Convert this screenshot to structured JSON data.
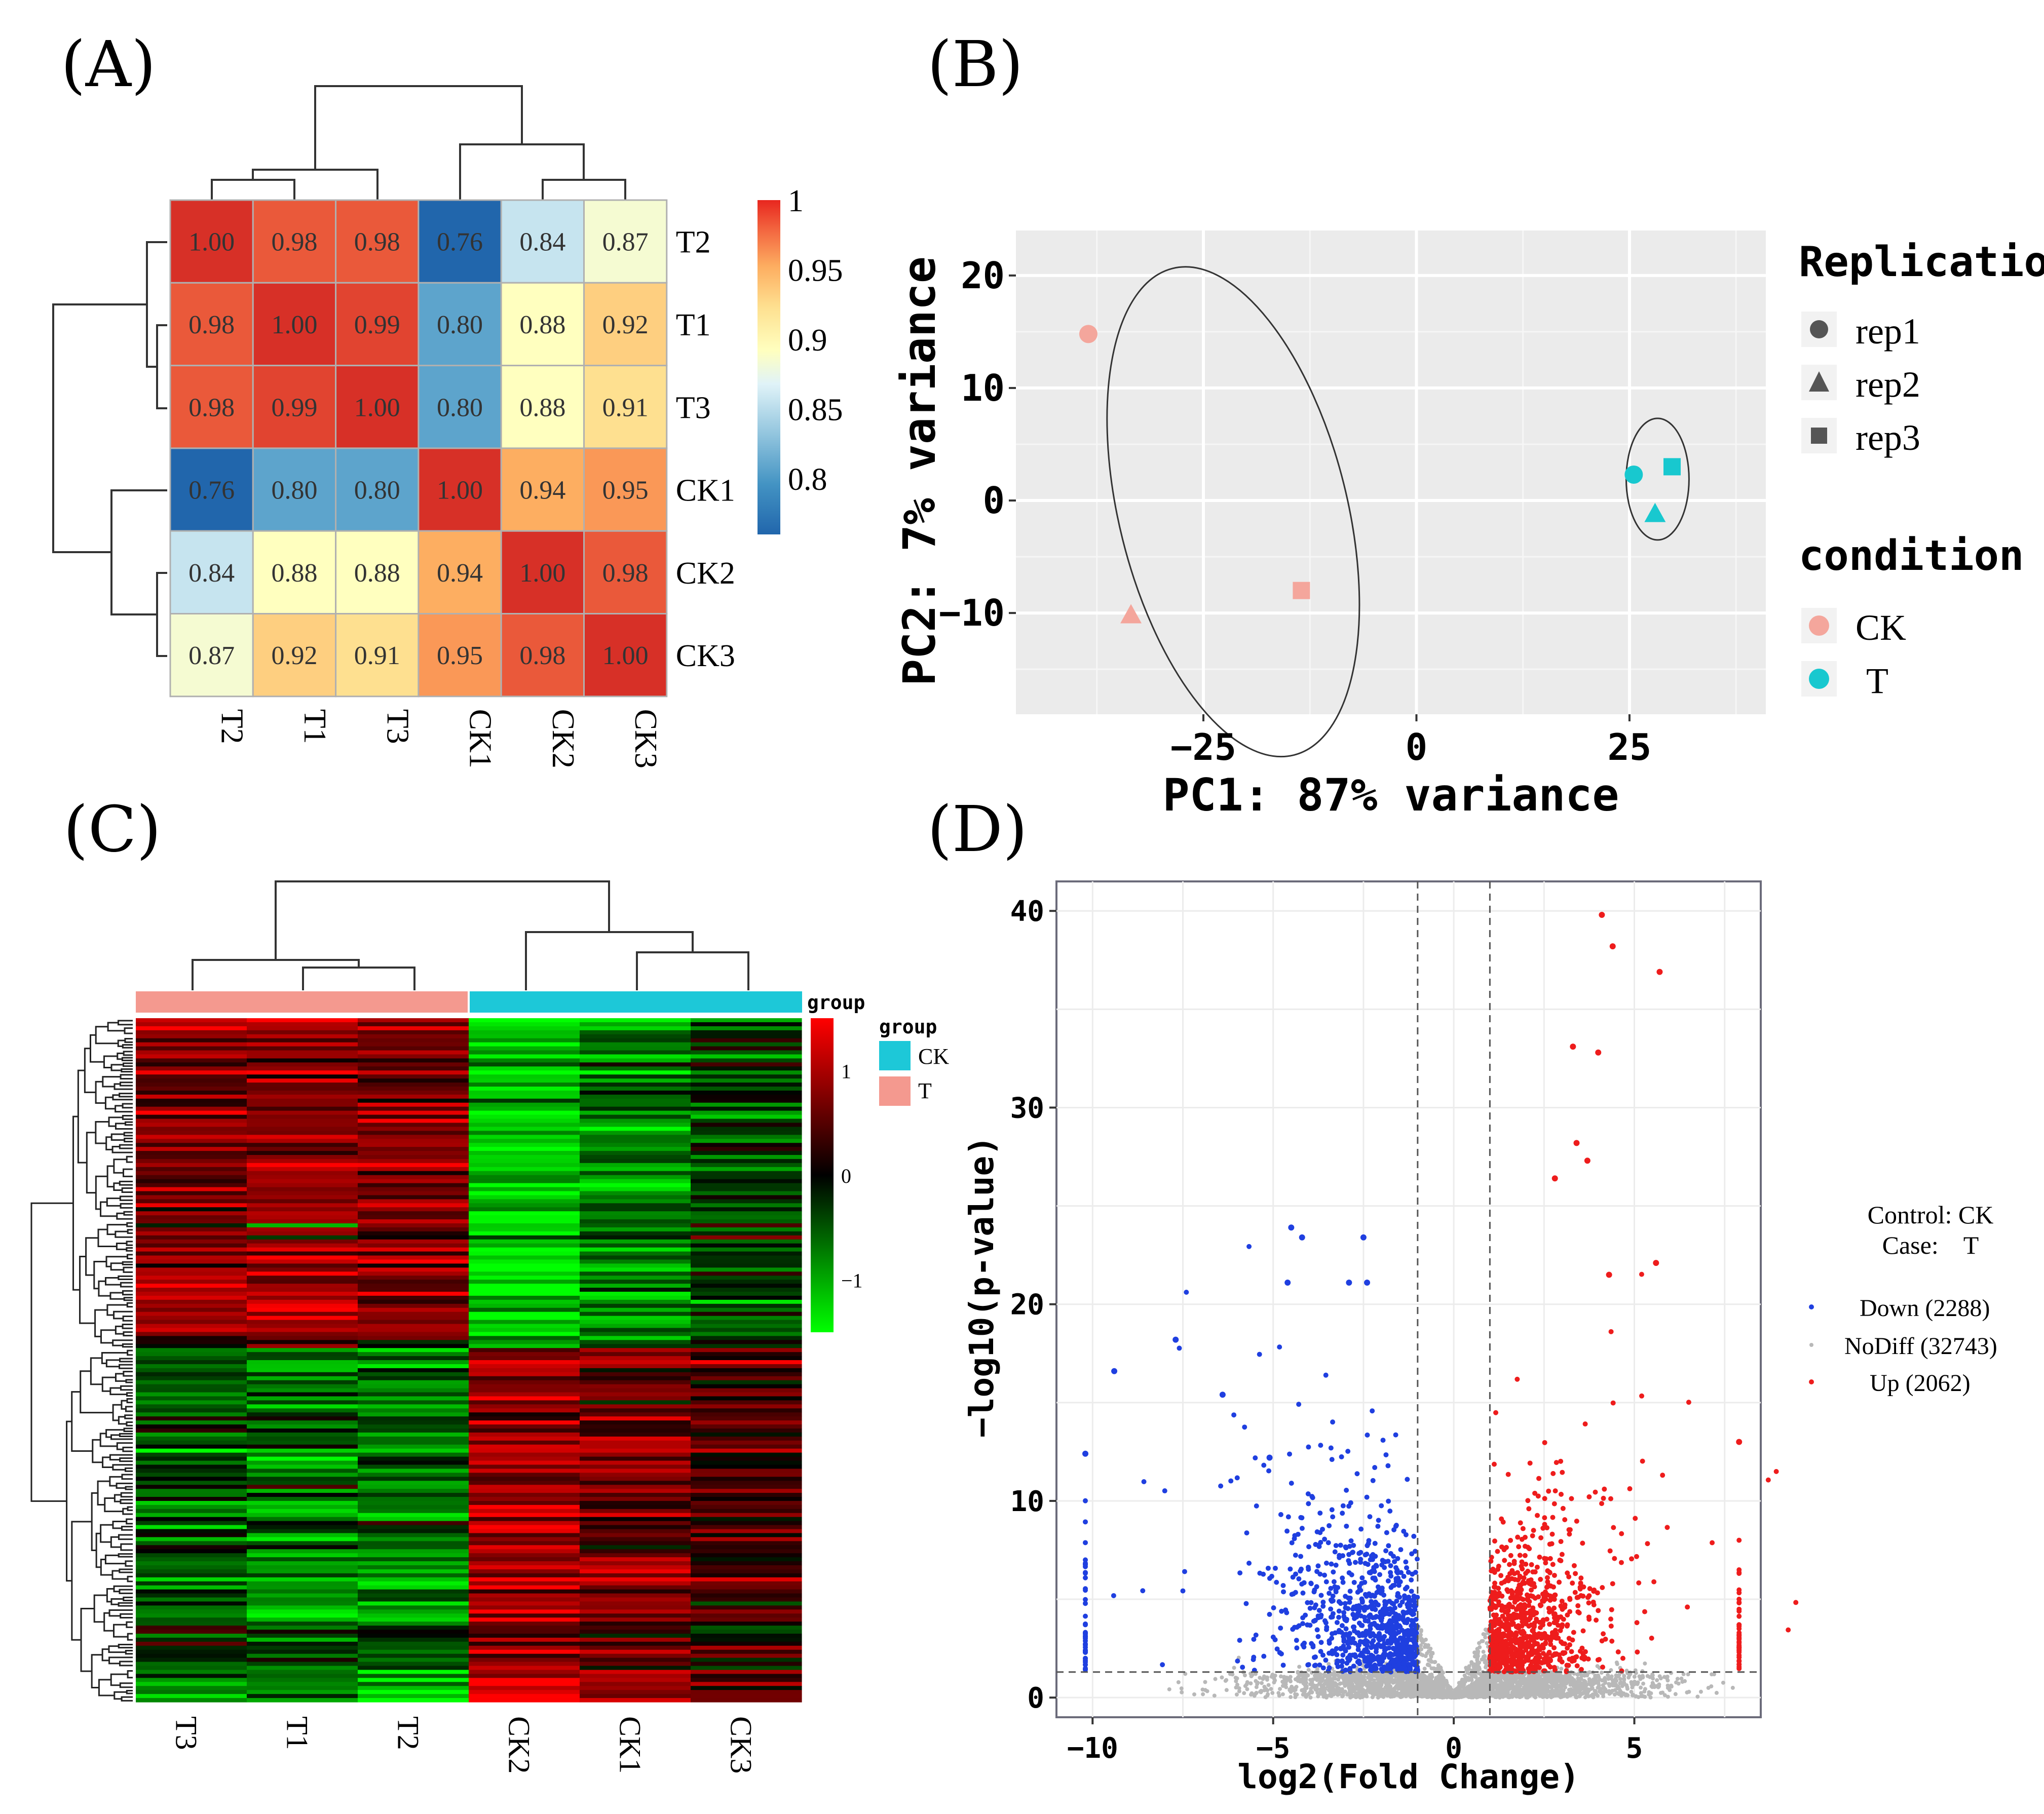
{
  "figure": {
    "panel_labels": [
      "(A)",
      "(B)",
      "(C)",
      "(D)"
    ]
  },
  "chart_data": [
    {
      "panel": "(A)",
      "type": "heatmap",
      "title": "",
      "row_labels": [
        "T2",
        "T1",
        "T3",
        "CK1",
        "CK2",
        "CK3"
      ],
      "col_labels": [
        "T2",
        "T1",
        "T3",
        "CK1",
        "CK2",
        "CK3"
      ],
      "values": [
        [
          1.0,
          0.98,
          0.98,
          0.76,
          0.84,
          0.87
        ],
        [
          0.98,
          1.0,
          0.99,
          0.8,
          0.88,
          0.92
        ],
        [
          0.98,
          0.99,
          1.0,
          0.8,
          0.88,
          0.91
        ],
        [
          0.76,
          0.8,
          0.8,
          1.0,
          0.94,
          0.95
        ],
        [
          0.84,
          0.88,
          0.88,
          0.94,
          1.0,
          0.98
        ],
        [
          0.87,
          0.92,
          0.91,
          0.95,
          0.98,
          1.0
        ]
      ],
      "value_labels": [
        [
          "1.00",
          "0.98",
          "0.98",
          "0.76",
          "0.84",
          "0.87"
        ],
        [
          "0.98",
          "1.00",
          "0.99",
          "0.80",
          "0.88",
          "0.92"
        ],
        [
          "0.98",
          "0.99",
          "1.00",
          "0.80",
          "0.88",
          "0.91"
        ],
        [
          "0.76",
          "0.80",
          "0.80",
          "1.00",
          "0.94",
          "0.95"
        ],
        [
          "0.84",
          "0.88",
          "0.88",
          "0.94",
          "1.00",
          "0.98"
        ],
        [
          "0.87",
          "0.92",
          "0.91",
          "0.95",
          "0.98",
          "1.00"
        ]
      ],
      "colorbar": {
        "min": 0.76,
        "max": 1.0,
        "ticks": [
          1,
          0.95,
          0.9,
          0.85,
          0.8
        ],
        "tick_labels": [
          "1",
          "0.95",
          "0.9",
          "0.85",
          "0.8"
        ],
        "colors": [
          "#2166ac",
          "#4393c3",
          "#92c5de",
          "#e0f3f8",
          "#ffffbf",
          "#fee090",
          "#fdae61",
          "#f46d43",
          "#d73027"
        ]
      },
      "dendrogram": "complete linkage; clusters {T2,(T1,T3)} and {CK1,(CK2,CK3)}"
    },
    {
      "panel": "(B)",
      "type": "scatter",
      "title": "",
      "xlabel": "PC1: 87% variance",
      "ylabel": "PC2: 7% variance",
      "xlim": [
        -47,
        41
      ],
      "ylim": [
        -19,
        24
      ],
      "x_ticks": [
        -25,
        0,
        25
      ],
      "x_tick_labels": [
        "−25",
        "0",
        "25"
      ],
      "y_ticks": [
        -10,
        0,
        10,
        20
      ],
      "y_tick_labels": [
        "−10",
        "0",
        "10",
        "20"
      ],
      "points": [
        {
          "x": -38.5,
          "y": 14.8,
          "condition": "CK",
          "replication": "rep1"
        },
        {
          "x": -33.5,
          "y": -10.2,
          "condition": "CK",
          "replication": "rep2"
        },
        {
          "x": -13.5,
          "y": -8.0,
          "condition": "CK",
          "replication": "rep3"
        },
        {
          "x": 25.5,
          "y": 2.3,
          "condition": "T",
          "replication": "rep1"
        },
        {
          "x": 28.0,
          "y": -1.2,
          "condition": "T",
          "replication": "rep2"
        },
        {
          "x": 30.0,
          "y": 3.0,
          "condition": "T",
          "replication": "rep3"
        }
      ],
      "ellipses": [
        {
          "condition": "CK",
          "center_x": -21.5,
          "center_y": -1.0,
          "note": "confidence ellipse"
        },
        {
          "condition": "T",
          "center_x": 28.3,
          "center_y": 1.9,
          "note": "confidence ellipse"
        }
      ],
      "legend": {
        "replication_title": "Replication",
        "replication": [
          "rep1",
          "rep2",
          "rep3"
        ],
        "condition_title": "condition",
        "condition": [
          "CK",
          "T"
        ],
        "condition_colors": {
          "CK": "#f4a69c",
          "T": "#18c8cf"
        }
      }
    },
    {
      "panel": "(C)",
      "type": "heatmap",
      "title": "",
      "col_labels": [
        "T3",
        "T1",
        "T2",
        "CK2",
        "CK1",
        "CK3"
      ],
      "col_groups": [
        "T",
        "T",
        "T",
        "CK",
        "CK",
        "CK"
      ],
      "group_legend_title": "group",
      "group_annotation_title": "group",
      "group_labels": [
        "CK",
        "T"
      ],
      "group_colors": {
        "CK": "#1dc8d8",
        "T": "#f4998f"
      },
      "colorbar": {
        "ticks": [
          1,
          0,
          -1
        ],
        "tick_labels": [
          "1",
          "0",
          "−1"
        ],
        "low": "#00ff00",
        "mid": "#000000",
        "high": "#ff0000"
      },
      "blocks": [
        {
          "name": "upper gene cluster",
          "fraction_of_rows": 0.48,
          "column_means": [
            0.75,
            0.8,
            0.7,
            -1.1,
            -0.7,
            -0.4
          ]
        },
        {
          "name": "lower gene cluster",
          "fraction_of_rows": 0.52,
          "column_means": [
            -0.6,
            -0.7,
            -0.75,
            1.0,
            0.7,
            0.35
          ]
        }
      ]
    },
    {
      "panel": "(D)",
      "type": "scatter",
      "title": "",
      "xlabel": "log2(Fold Change)",
      "ylabel": "−log10(p-value)",
      "xlim": [
        -11,
        8.5
      ],
      "ylim": [
        -1,
        41.5
      ],
      "x_ticks": [
        -10,
        -5,
        0,
        5
      ],
      "x_tick_labels": [
        "−10",
        "−5",
        "0",
        "5"
      ],
      "y_ticks": [
        0,
        10,
        20,
        30,
        40
      ],
      "y_tick_labels": [
        "0",
        "10",
        "20",
        "30",
        "40"
      ],
      "fc_threshold_lines": [
        -1,
        1
      ],
      "pvalue_threshold_line": 1.3,
      "info_control": "Control: CK",
      "info_case": "Case:    T",
      "legend": [
        {
          "label": "Down (2288)",
          "color": "#1f3fe0",
          "count": 2288
        },
        {
          "label": "NoDiff (32743)",
          "color": "#b8b8b8",
          "count": 32743
        },
        {
          "label": "Up (2062)",
          "color": "#ee1c1c",
          "count": 2062
        }
      ],
      "notable_points": {
        "up": [
          [
            4.1,
            39.8
          ],
          [
            4.4,
            38.2
          ],
          [
            5.7,
            36.9
          ],
          [
            3.3,
            33.1
          ],
          [
            4.0,
            32.8
          ],
          [
            3.4,
            28.2
          ],
          [
            3.7,
            27.3
          ],
          [
            5.6,
            22.1
          ],
          [
            4.3,
            21.5
          ],
          [
            2.8,
            26.4
          ],
          [
            7.9,
            13.0
          ]
        ],
        "down": [
          [
            -4.5,
            23.9
          ],
          [
            -4.2,
            23.4
          ],
          [
            -2.5,
            23.4
          ],
          [
            -2.9,
            21.1
          ],
          [
            -4.6,
            21.1
          ],
          [
            -2.4,
            21.1
          ],
          [
            -7.7,
            18.2
          ],
          [
            -9.4,
            16.6
          ],
          [
            -6.4,
            15.4
          ],
          [
            -10.2,
            12.4
          ],
          [
            -5.1,
            12.2
          ]
        ]
      }
    }
  ]
}
